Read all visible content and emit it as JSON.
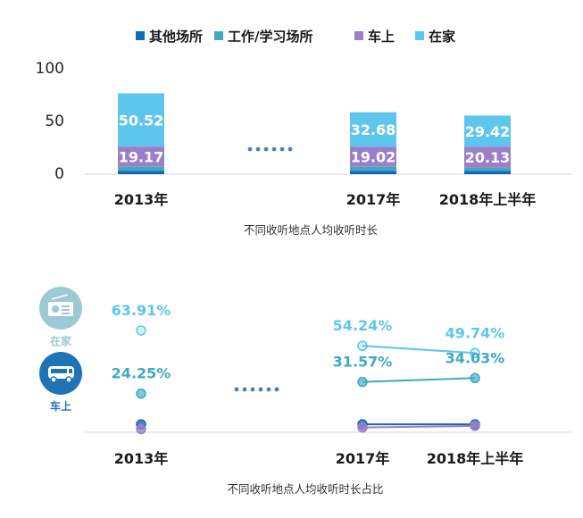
{
  "colors": {
    "other": "#1567b3",
    "work": "#3fa9c3",
    "car": "#9c7fc9",
    "home": "#5ec6ec",
    "dots": "#4a7fbf",
    "axis": "#e3e3e3",
    "home_icon_bg": "#9cc9d4",
    "car_icon_bg": "#1e74b6"
  },
  "legend": [
    "其他场所",
    "工作/学习场所",
    "车上",
    "在家"
  ],
  "icons": {
    "home": {
      "icon": "radio-icon",
      "label": "在家"
    },
    "car": {
      "icon": "bus-icon",
      "label": "车上"
    }
  },
  "chart_data": [
    {
      "type": "bar",
      "stacked": true,
      "categories": [
        "2013年",
        "2017年",
        "2018年上半年"
      ],
      "ylim": [
        0,
        100
      ],
      "yticks": [
        "0",
        "50",
        "100"
      ],
      "gap_marker": "dots between 2013年 and 2017年",
      "series": [
        {
          "name": "其他场所",
          "values": [
            3,
            3,
            3
          ]
        },
        {
          "name": "工作/学习场所",
          "values": [
            4,
            4,
            3
          ]
        },
        {
          "name": "车上",
          "values": [
            19.17,
            19.02,
            20.13
          ]
        },
        {
          "name": "在家",
          "values": [
            50.52,
            32.68,
            29.42
          ]
        }
      ],
      "data_labels": {
        "车上": [
          "19.17",
          "19.02",
          "20.13"
        ],
        "在家": [
          "50.52",
          "32.68",
          "29.42"
        ]
      },
      "caption": "不同收听地点人均收听时长",
      "legend_position": "top"
    },
    {
      "type": "line",
      "categories": [
        "2013年",
        "2017年",
        "2018年上半年"
      ],
      "ylim": [
        0,
        70
      ],
      "gap_marker": "dots between 2013年 and 2017年",
      "series": [
        {
          "name": "在家",
          "values": [
            63.91,
            54.24,
            49.74
          ],
          "labels": [
            "63.91%",
            "54.24%",
            "49.74%"
          ]
        },
        {
          "name": "车上",
          "values": [
            24.25,
            31.57,
            34.03
          ],
          "labels": [
            "24.25%",
            "31.57%",
            "34.03%"
          ]
        },
        {
          "name": "其他场所",
          "values": [
            5,
            5,
            5
          ]
        },
        {
          "name": "工作/学习场所",
          "values": [
            2,
            3,
            4
          ]
        }
      ],
      "caption": "不同收听地点人均收听时长占比"
    }
  ]
}
